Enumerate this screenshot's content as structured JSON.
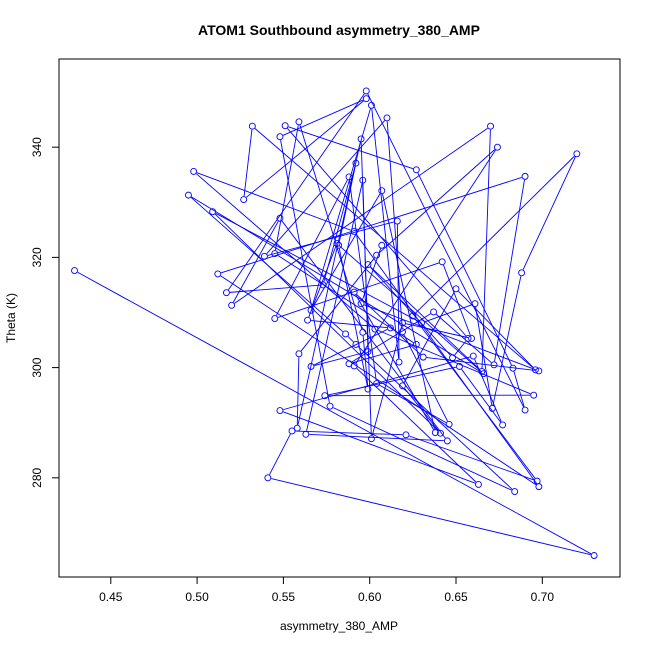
{
  "chart_data": {
    "type": "scatter",
    "title": "ATOM1 Southbound asymmetry_380_AMP",
    "xlabel": "asymmetry_380_AMP",
    "ylabel": "Theta (K)",
    "xlim": [
      0.42,
      0.745
    ],
    "ylim": [
      262,
      356
    ],
    "xticks": [
      0.45,
      0.5,
      0.55,
      0.6,
      0.65,
      0.7
    ],
    "xtick_labels": [
      "0.45",
      "0.50",
      "0.55",
      "0.60",
      "0.65",
      "0.70"
    ],
    "yticks": [
      280,
      300,
      320,
      340
    ],
    "ytick_labels": [
      "280",
      "300",
      "320",
      "340"
    ],
    "color": "#0000ff",
    "grid": false,
    "connected": true,
    "series": [
      {
        "points": [
          [
            0.429,
            317.6
          ],
          [
            0.73,
            265.9
          ],
          [
            0.541,
            280.0
          ],
          [
            0.555,
            288.5
          ],
          [
            0.621,
            287.8
          ],
          [
            0.697,
            279.4
          ],
          [
            0.625,
            309.4
          ],
          [
            0.72,
            338.8
          ],
          [
            0.688,
            317.2
          ],
          [
            0.671,
            292.6
          ],
          [
            0.661,
            311.6
          ],
          [
            0.63,
            308.1
          ],
          [
            0.509,
            328.3
          ],
          [
            0.641,
            288.1
          ],
          [
            0.619,
            296.7
          ],
          [
            0.65,
            314.3
          ],
          [
            0.696,
            299.6
          ],
          [
            0.532,
            343.8
          ],
          [
            0.527,
            330.5
          ],
          [
            0.598,
            348.8
          ],
          [
            0.548,
            341.9
          ],
          [
            0.577,
            293.0
          ],
          [
            0.684,
            277.5
          ],
          [
            0.592,
            304.2
          ],
          [
            0.586,
            306.1
          ],
          [
            0.495,
            331.3
          ],
          [
            0.666,
            298.9
          ],
          [
            0.581,
            322.5
          ],
          [
            0.564,
            308.6
          ],
          [
            0.612,
            307.2
          ],
          [
            0.566,
            300.2
          ],
          [
            0.599,
            302.9
          ],
          [
            0.596,
            334.0
          ],
          [
            0.563,
            287.9
          ],
          [
            0.645,
            286.7
          ],
          [
            0.548,
            327.1
          ],
          [
            0.52,
            311.3
          ],
          [
            0.67,
            343.8
          ],
          [
            0.665,
            299.3
          ],
          [
            0.599,
            318.7
          ],
          [
            0.648,
            301.8
          ],
          [
            0.657,
            305.3
          ],
          [
            0.551,
            343.9
          ],
          [
            0.627,
            335.9
          ],
          [
            0.683,
            299.9
          ],
          [
            0.69,
            292.3
          ],
          [
            0.598,
            350.2
          ],
          [
            0.517,
            313.6
          ],
          [
            0.573,
            315.0
          ],
          [
            0.592,
            337.1
          ],
          [
            0.582,
            322.2
          ],
          [
            0.599,
            296.1
          ],
          [
            0.596,
            306.4
          ],
          [
            0.559,
            344.6
          ],
          [
            0.545,
            320.7
          ],
          [
            0.627,
            304.2
          ],
          [
            0.588,
            300.7
          ],
          [
            0.637,
            310.1
          ],
          [
            0.672,
            300.5
          ],
          [
            0.69,
            334.7
          ],
          [
            0.512,
            317.0
          ],
          [
            0.698,
            278.4
          ],
          [
            0.591,
            324.7
          ],
          [
            0.498,
            335.6
          ],
          [
            0.603,
            307.0
          ],
          [
            0.695,
            295.0
          ],
          [
            0.574,
            294.9
          ],
          [
            0.652,
            300.2
          ],
          [
            0.677,
            289.6
          ],
          [
            0.66,
            302.1
          ],
          [
            0.548,
            292.2
          ],
          [
            0.663,
            278.8
          ],
          [
            0.591,
            300.3
          ],
          [
            0.674,
            340.0
          ],
          [
            0.604,
            320.4
          ],
          [
            0.559,
            302.5
          ],
          [
            0.558,
            289.0
          ],
          [
            0.595,
            341.5
          ],
          [
            0.601,
            287.1
          ],
          [
            0.619,
            308.1
          ],
          [
            0.659,
            305.3
          ],
          [
            0.642,
            319.2
          ],
          [
            0.545,
            308.9
          ],
          [
            0.588,
            334.6
          ],
          [
            0.604,
            297.1
          ],
          [
            0.646,
            289.7
          ],
          [
            0.619,
            306.5
          ],
          [
            0.61,
            345.3
          ],
          [
            0.539,
            320.2
          ],
          [
            0.616,
            326.6
          ],
          [
            0.617,
            301.0
          ],
          [
            0.601,
            347.6
          ],
          [
            0.566,
            310.4
          ],
          [
            0.607,
            332.1
          ],
          [
            0.638,
            288.2
          ],
          [
            0.591,
            313.7
          ],
          [
            0.631,
            301.9
          ],
          [
            0.698,
            299.4
          ],
          [
            0.595,
            311.6
          ],
          [
            0.607,
            322.2
          ]
        ]
      }
    ]
  }
}
